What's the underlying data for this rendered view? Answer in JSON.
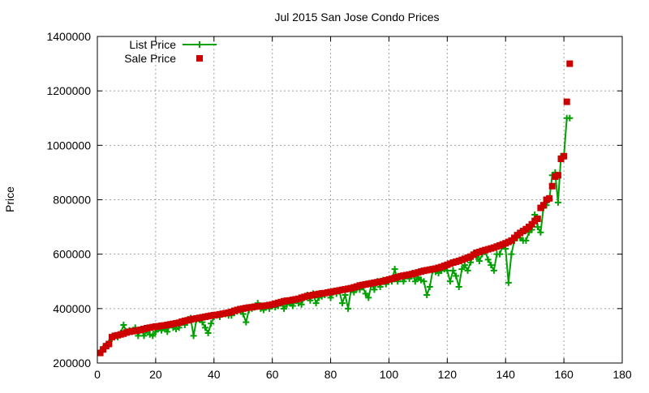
{
  "chart_data": {
    "type": "line",
    "title": "Jul 2015 San Jose Condo Prices",
    "xlabel": "",
    "ylabel": "Price",
    "xlim": [
      0,
      180
    ],
    "ylim": [
      200000,
      1400000
    ],
    "xticks": [
      "0",
      "20",
      "40",
      "60",
      "80",
      "100",
      "120",
      "140",
      "160",
      "180"
    ],
    "yticks": [
      "200000",
      "400000",
      "600000",
      "800000",
      "1000000",
      "1200000",
      "1400000"
    ],
    "grid": true,
    "legend_position": "top-left",
    "series": [
      {
        "name": "List Price",
        "style": "linespoints",
        "color": "#00a000",
        "values": [
          240000,
          255000,
          265000,
          275000,
          290000,
          300000,
          295000,
          310000,
          340000,
          315000,
          320000,
          315000,
          330000,
          300000,
          325000,
          300000,
          320000,
          305000,
          300000,
          315000,
          330000,
          320000,
          330000,
          315000,
          340000,
          330000,
          325000,
          330000,
          350000,
          340000,
          360000,
          365000,
          300000,
          360000,
          360000,
          350000,
          330000,
          310000,
          345000,
          370000,
          375000,
          370000,
          380000,
          380000,
          375000,
          375000,
          385000,
          390000,
          395000,
          380000,
          350000,
          395000,
          400000,
          405000,
          420000,
          400000,
          395000,
          410000,
          400000,
          410000,
          405000,
          410000,
          420000,
          400000,
          415000,
          420000,
          410000,
          430000,
          420000,
          415000,
          440000,
          450000,
          430000,
          455000,
          420000,
          440000,
          445000,
          450000,
          460000,
          440000,
          460000,
          455000,
          465000,
          420000,
          450000,
          400000,
          470000,
          460000,
          475000,
          470000,
          480000,
          455000,
          440000,
          490000,
          470000,
          500000,
          480000,
          505000,
          490000,
          505000,
          500000,
          545000,
          500000,
          520000,
          500000,
          520000,
          510000,
          530000,
          500000,
          515000,
          505000,
          500000,
          450000,
          480000,
          540000,
          535000,
          530000,
          540000,
          545000,
          540000,
          500000,
          540000,
          520000,
          480000,
          545000,
          560000,
          540000,
          570000,
          600000,
          590000,
          575000,
          600000,
          610000,
          580000,
          560000,
          540000,
          600000,
          600000,
          630000,
          620000,
          495000,
          600000,
          650000,
          660000,
          660000,
          650000,
          650000,
          680000,
          690000,
          745000,
          700000,
          680000,
          770000,
          780000,
          800000,
          890000,
          900000,
          790000,
          960000,
          960000,
          1100000,
          1100000
        ]
      },
      {
        "name": "Sale Price",
        "style": "points",
        "color": "#cc0000",
        "values": [
          237000,
          250000,
          262000,
          270000,
          295000,
          300000,
          302000,
          305000,
          308000,
          312000,
          315000,
          317000,
          318000,
          320000,
          322000,
          325000,
          328000,
          330000,
          332000,
          334000,
          335000,
          337000,
          338000,
          340000,
          342000,
          344000,
          346000,
          348000,
          352000,
          355000,
          357000,
          360000,
          362000,
          364000,
          366000,
          368000,
          370000,
          372000,
          374000,
          376000,
          377000,
          379000,
          381000,
          383000,
          385000,
          388000,
          392000,
          395000,
          398000,
          400000,
          402000,
          404000,
          405000,
          407000,
          408000,
          409000,
          410000,
          411000,
          413000,
          415000,
          418000,
          421000,
          424000,
          427000,
          429000,
          430000,
          432000,
          434000,
          436000,
          440000,
          443000,
          446000,
          448000,
          450000,
          452000,
          454000,
          456000,
          457000,
          459000,
          461000,
          463000,
          465000,
          467000,
          469000,
          471000,
          473000,
          475000,
          478000,
          481000,
          485000,
          487000,
          489000,
          491000,
          493000,
          495000,
          497000,
          499000,
          501000,
          504000,
          507000,
          510000,
          513000,
          516000,
          519000,
          521000,
          523000,
          525000,
          527000,
          530000,
          533000,
          536000,
          539000,
          541000,
          543000,
          545000,
          547000,
          550000,
          553000,
          557000,
          561000,
          565000,
          569000,
          572000,
          575000,
          579000,
          583000,
          587000,
          591000,
          598000,
          605000,
          608000,
          612000,
          615000,
          618000,
          621000,
          624000,
          628000,
          632000,
          636000,
          640000,
          645000,
          650000,
          660000,
          670000,
          678000,
          685000,
          692000,
          700000,
          710000,
          722000,
          730000,
          770000,
          780000,
          800000,
          805000,
          850000,
          885000,
          890000,
          950000,
          960000,
          1160000,
          1300000
        ]
      }
    ]
  }
}
